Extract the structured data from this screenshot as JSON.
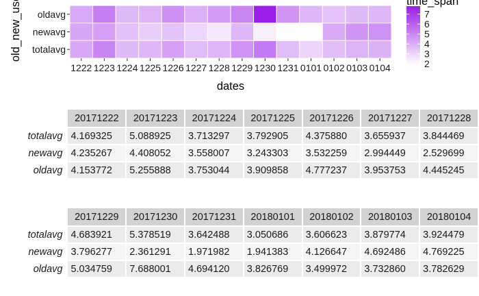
{
  "chart_data": [
    {
      "type": "heatmap",
      "xlabel": "dates",
      "ylabel": "old_new_use",
      "x_tick_labels": [
        "1222",
        "1223",
        "1224",
        "1225",
        "1226",
        "1227",
        "1228",
        "1229",
        "1230",
        "1231",
        "0101",
        "0102",
        "0103",
        "0104"
      ],
      "y_tick_labels": [
        "oldavg",
        "newavg",
        "totalavg"
      ],
      "legend": {
        "title": "time_span",
        "ticks": [
          "7",
          "6",
          "5",
          "4",
          "3",
          "2"
        ],
        "tick_values": [
          7,
          6,
          5,
          4,
          3,
          2
        ],
        "range": [
          1.94,
          7.69
        ],
        "color_low": "#ffffff",
        "color_high": "#9b1fe8",
        "placement": "right"
      },
      "series": [
        {
          "name": "oldavg",
          "values": [
            4.153772,
            5.255888,
            3.753044,
            3.909858,
            4.777237,
            3.953753,
            4.445245,
            5.034759,
            7.688001,
            4.69412,
            3.826769,
            3.499972,
            3.73286,
            3.782629
          ]
        },
        {
          "name": "newavg",
          "values": [
            4.235267,
            4.408052,
            3.558007,
            3.243303,
            3.532259,
            2.994449,
            2.529699,
            3.796277,
            2.361291,
            1.971982,
            1.941383,
            4.126647,
            4.692486,
            4.769225
          ]
        },
        {
          "name": "totalavg",
          "values": [
            4.169325,
            5.088925,
            3.713297,
            3.792905,
            4.37588,
            3.655937,
            3.844469,
            4.683921,
            5.378519,
            3.642488,
            3.050686,
            3.606623,
            3.879774,
            3.924479
          ]
        }
      ]
    },
    {
      "type": "table",
      "columns": [
        "20171222",
        "20171223",
        "20171224",
        "20171225",
        "20171226",
        "20171227",
        "20171228"
      ],
      "rows": [
        {
          "name": "totalavg",
          "values": [
            "4.169325",
            "5.088925",
            "3.713297",
            "3.792905",
            "4.375880",
            "3.655937",
            "3.844469"
          ]
        },
        {
          "name": "newavg",
          "values": [
            "4.235267",
            "4.408052",
            "3.558007",
            "3.243303",
            "3.532259",
            "2.994449",
            "2.529699"
          ]
        },
        {
          "name": "oldavg",
          "values": [
            "4.153772",
            "5.255888",
            "3.753044",
            "3.909858",
            "4.777237",
            "3.953753",
            "4.445245"
          ]
        }
      ]
    },
    {
      "type": "table",
      "columns": [
        "20171229",
        "20171230",
        "20171231",
        "20180101",
        "20180102",
        "20180103",
        "20180104"
      ],
      "rows": [
        {
          "name": "totalavg",
          "values": [
            "4.683921",
            "5.378519",
            "3.642488",
            "3.050686",
            "3.606623",
            "3.879774",
            "3.924479"
          ]
        },
        {
          "name": "newavg",
          "values": [
            "3.796277",
            "2.361291",
            "1.971982",
            "1.941383",
            "4.126647",
            "4.692486",
            "4.769225"
          ]
        },
        {
          "name": "oldavg",
          "values": [
            "5.034759",
            "7.688001",
            "4.694120",
            "3.826769",
            "3.499972",
            "3.732860",
            "3.782629"
          ]
        }
      ]
    }
  ]
}
